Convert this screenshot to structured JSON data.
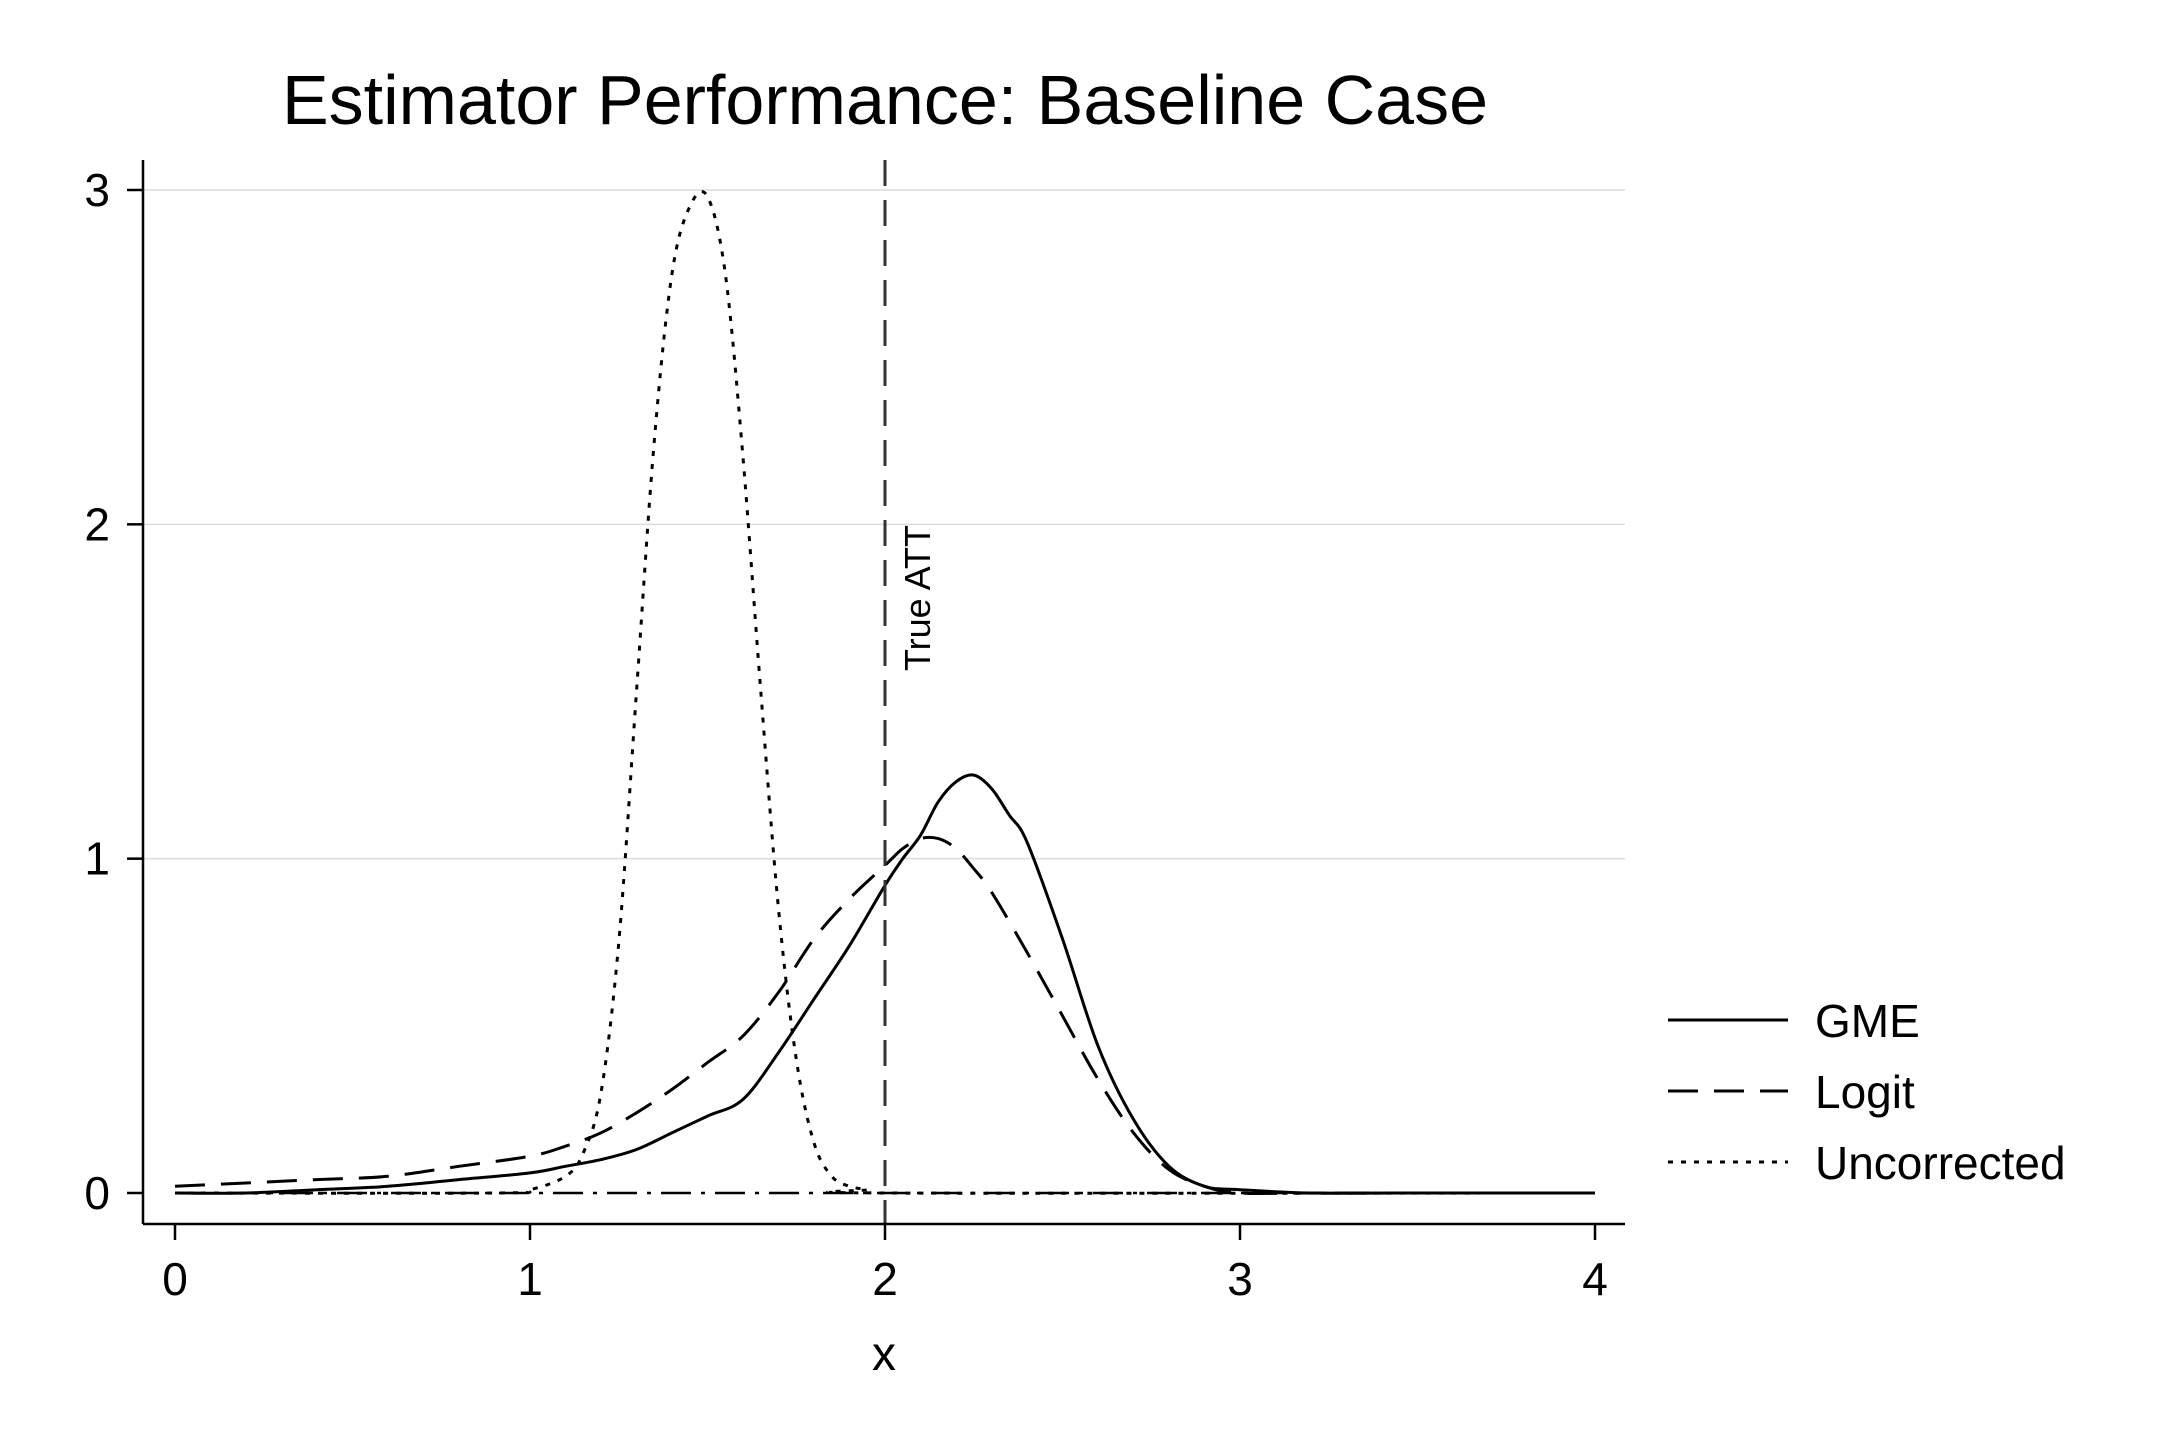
{
  "chart_data": {
    "type": "line",
    "title": "Estimator Performance: Baseline Case",
    "xlabel": "x",
    "ylabel": "",
    "xlim": [
      0,
      4
    ],
    "ylim": [
      0,
      3
    ],
    "xticks": [
      "0",
      "1",
      "2",
      "3",
      "4"
    ],
    "yticks": [
      "0",
      "1",
      "2",
      "3"
    ],
    "grid": "horizontal",
    "legend_position": "right",
    "reference_line": {
      "x": 2,
      "label": "True ATT",
      "style": "dashed"
    },
    "series": [
      {
        "name": "GME",
        "style": "solid",
        "x": [
          0,
          0.2,
          0.4,
          0.6,
          0.8,
          1.0,
          1.1,
          1.2,
          1.3,
          1.4,
          1.5,
          1.6,
          1.7,
          1.8,
          1.9,
          2.0,
          2.05,
          2.1,
          2.15,
          2.2,
          2.25,
          2.3,
          2.35,
          2.4,
          2.5,
          2.6,
          2.7,
          2.8,
          2.9,
          3.0,
          3.2,
          3.5,
          4.0
        ],
        "y": [
          0.0,
          0.0,
          0.01,
          0.02,
          0.04,
          0.06,
          0.08,
          0.1,
          0.13,
          0.18,
          0.23,
          0.28,
          0.42,
          0.58,
          0.74,
          0.92,
          1.0,
          1.07,
          1.17,
          1.23,
          1.25,
          1.21,
          1.13,
          1.05,
          0.76,
          0.44,
          0.22,
          0.08,
          0.02,
          0.01,
          0.0,
          0.0,
          0.0
        ]
      },
      {
        "name": "Logit",
        "style": "dashed",
        "x": [
          0,
          0.2,
          0.4,
          0.6,
          0.8,
          1.0,
          1.1,
          1.2,
          1.3,
          1.4,
          1.5,
          1.6,
          1.7,
          1.8,
          1.9,
          2.0,
          2.05,
          2.1,
          2.15,
          2.2,
          2.25,
          2.3,
          2.4,
          2.5,
          2.6,
          2.7,
          2.8,
          2.9,
          3.0,
          3.2,
          3.5,
          4.0
        ],
        "y": [
          0.02,
          0.03,
          0.04,
          0.05,
          0.08,
          0.11,
          0.14,
          0.18,
          0.24,
          0.31,
          0.39,
          0.47,
          0.6,
          0.76,
          0.88,
          0.98,
          1.03,
          1.06,
          1.06,
          1.03,
          0.97,
          0.9,
          0.72,
          0.53,
          0.34,
          0.18,
          0.07,
          0.02,
          0.0,
          0.0,
          0.0,
          0.0
        ]
      },
      {
        "name": "Uncorrected",
        "style": "dotted",
        "x": [
          0,
          0.9,
          1.0,
          1.1,
          1.15,
          1.2,
          1.25,
          1.3,
          1.35,
          1.4,
          1.45,
          1.5,
          1.55,
          1.6,
          1.65,
          1.7,
          1.75,
          1.8,
          1.85,
          1.9,
          1.95,
          2.0,
          4.0
        ],
        "y": [
          0.0,
          0.0,
          0.01,
          0.05,
          0.12,
          0.3,
          0.75,
          1.5,
          2.25,
          2.75,
          2.95,
          2.98,
          2.75,
          2.2,
          1.5,
          0.85,
          0.4,
          0.15,
          0.05,
          0.02,
          0.01,
          0.0,
          0.0
        ]
      }
    ]
  }
}
